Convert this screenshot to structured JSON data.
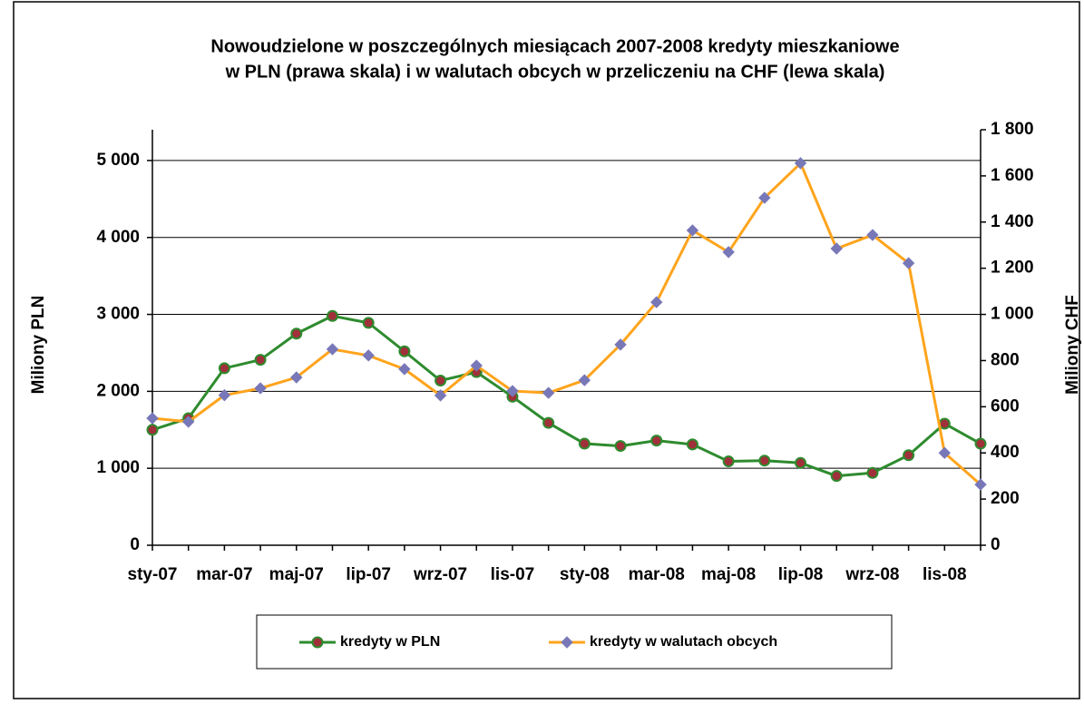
{
  "chart_data": {
    "type": "line",
    "title": [
      "Nowoudzielone w poszczególnych miesiącach 2007-2008 kredyty mieszkaniowe",
      "w PLN (prawa skala) i w walutach obcych w przeliczeniu na CHF (lewa skala)"
    ],
    "y_label": "Miliony PLN",
    "y2_label": "Miliony CHF",
    "categories": [
      "sty-07",
      null,
      "mar-07",
      null,
      "maj-07",
      null,
      "lip-07",
      null,
      "wrz-07",
      null,
      "lis-07",
      null,
      "sty-08",
      null,
      "mar-08",
      null,
      "maj-08",
      null,
      "lip-08",
      null,
      "wrz-08",
      null,
      "lis-08",
      null
    ],
    "series": [
      {
        "name": "kredyty w PLN",
        "color": "#2e8b2e",
        "marker_color": "#a0303a",
        "marker": "circle",
        "values": [
          1500,
          1650,
          2300,
          2410,
          2750,
          2980,
          2890,
          2520,
          2140,
          2250,
          1930,
          1590,
          1320,
          1290,
          1360,
          1310,
          1090,
          1100,
          1070,
          900,
          940,
          1170,
          1580,
          1320
        ]
      },
      {
        "name": "kredyty w walutach obcych",
        "color": "#ffa41c",
        "marker_color": "#7878b8",
        "marker": "diamond",
        "axis": "y2",
        "values": [
          550,
          535,
          650,
          680,
          727,
          849,
          822,
          763,
          649,
          778,
          668,
          660,
          715,
          869,
          1053,
          1364,
          1270,
          1505,
          1655,
          1285,
          1344,
          1222,
          400,
          263
        ]
      }
    ],
    "ylim": [
      0,
      5400
    ],
    "yticks": [
      0,
      {
        "value": 1000,
        "label": "1 000"
      },
      {
        "value": 2000,
        "label": "2 000"
      },
      {
        "value": 3000,
        "label": "3 000"
      },
      {
        "value": 4000,
        "label": "4 000"
      },
      {
        "value": 5000,
        "label": "5 000"
      }
    ],
    "y2lim": [
      0,
      1800
    ],
    "y2ticks": [
      0,
      200,
      400,
      600,
      800,
      {
        "value": 1000,
        "label": "1 000"
      },
      {
        "value": 1200,
        "label": "1 200"
      },
      {
        "value": 1400,
        "label": "1 400"
      },
      {
        "value": 1600,
        "label": "1 600"
      },
      {
        "value": 1800,
        "label": "1 800"
      }
    ],
    "grid": true,
    "legend": "bottom"
  }
}
